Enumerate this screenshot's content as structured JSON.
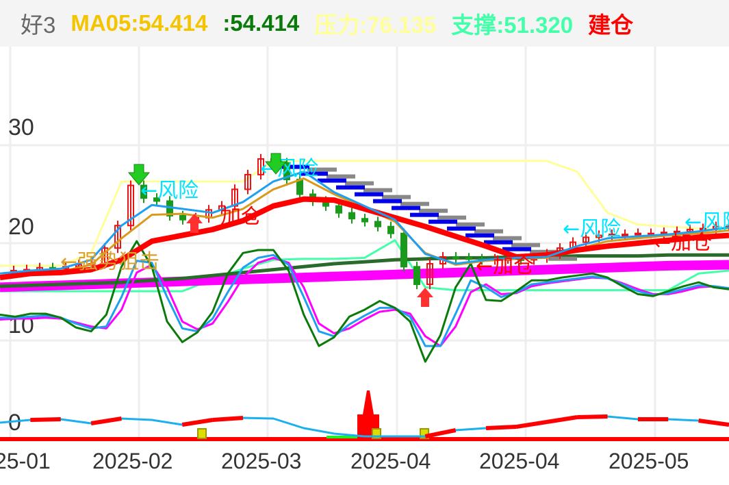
{
  "header": {
    "name": "好3",
    "ma05": "MA05:54.414",
    "value": ":54.414",
    "pressure": "压力:76.135",
    "support": "支撑:51.320",
    "build": "建仓"
  },
  "colors": {
    "ma05": "#f5c400",
    "value": "#0a7a0a",
    "pressure": "#ffff99",
    "support": "#44ffaa",
    "build": "#ff0000",
    "up": "#ee1111",
    "down": "#1a9a1a",
    "ma_long": "#ff0000",
    "ma_fast": "#1e9ff0",
    "ma_mid": "#d99a1a",
    "trend_green": "#2a6a2a",
    "trend_magenta": "#ff00ff",
    "osc_green": "#0a7a0a",
    "osc_blue": "#1e9ff0",
    "osc_magenta": "#ff00ff",
    "bottom_line": "#1ab0ee"
  },
  "chart_data": {
    "type": "candlestick",
    "y_ticks": [
      "30",
      "20",
      "10",
      "0"
    ],
    "x_ticks": [
      "25-01",
      "2025-02",
      "2025-03",
      "2025-04",
      "2025-04",
      "2025-05"
    ],
    "grid": true,
    "closes": [
      17.2,
      17.3,
      17.5,
      17.4,
      17.6,
      17.8,
      17.9,
      19.5,
      21.8,
      25.9,
      24.6,
      24.3,
      22.8,
      22.4,
      22.6,
      23.4,
      23.8,
      25.5,
      27.0,
      28.6,
      28.2,
      26.5,
      25.0,
      24.3,
      23.8,
      23.1,
      22.5,
      22.2,
      21.7,
      21.0,
      17.6,
      15.8,
      17.9,
      18.6,
      18.5,
      18.4,
      18.3,
      18.4,
      18.4,
      18.3,
      18.5,
      18.9,
      19.5,
      20.1,
      20.6,
      20.8,
      20.9,
      20.9,
      21.0,
      21.0,
      21.1,
      21.2,
      21.4,
      21.5,
      21.7,
      21.7
    ],
    "lines": {
      "ma_long": [
        16.5,
        16.9,
        17.0,
        17.3,
        18.3,
        20.2,
        20.8,
        21.4,
        22.3,
        23.8,
        24.5,
        24.4,
        23.5,
        22.6,
        21.7,
        20.7,
        19.7,
        18.6,
        18.8,
        19.3,
        19.7,
        20.0,
        20.3,
        20.6,
        20.8
      ],
      "ma_fast": [
        16.9,
        17.2,
        17.4,
        18.3,
        21.8,
        23.9,
        23.5,
        23.1,
        24.2,
        26.3,
        27.3,
        25.2,
        23.8,
        22.4,
        18.9,
        17.9,
        18.3,
        18.5,
        18.6,
        19.7,
        20.5,
        20.7,
        20.9,
        21.2,
        21.6
      ],
      "ma_mid": [
        16.6,
        16.9,
        17.1,
        17.8,
        20.5,
        22.9,
        23.0,
        22.6,
        23.5,
        25.5,
        26.6,
        25.0,
        23.6,
        22.2,
        19.0,
        17.8,
        18.2,
        18.4,
        18.5,
        19.4,
        20.2,
        20.5,
        20.8,
        21.0,
        21.3
      ],
      "pressure": [
        17.7,
        17.7,
        17.7,
        19.0,
        26.3,
        26.3,
        26.3,
        26.3,
        26.3,
        28.4,
        28.4,
        28.4,
        28.4,
        28.4,
        28.4,
        28.4,
        28.4,
        28.4,
        28.4,
        27.3,
        23.1,
        21.9,
        21.7,
        21.5,
        21.4
      ],
      "support": [
        15.1,
        15.1,
        15.1,
        15.1,
        15.1,
        15.1,
        15.1,
        16.3,
        17.4,
        18.3,
        18.4,
        18.4,
        18.5,
        20.3,
        15.5,
        15.2,
        15.2,
        15.2,
        15.2,
        15.2,
        15.2,
        15.2,
        15.2,
        16.9,
        17.2
      ],
      "trend_green": [
        15.6,
        15.7,
        15.8,
        15.9,
        16.0,
        16.2,
        16.4,
        16.7,
        17.0,
        17.3,
        17.6,
        17.9,
        18.1,
        18.3,
        18.4,
        18.5,
        18.5,
        18.6,
        18.6,
        18.7,
        18.7,
        18.7,
        18.8,
        18.8,
        18.8
      ],
      "trend_magenta": [
        15.5,
        15.6,
        15.7,
        15.8,
        15.9,
        16.0,
        16.1,
        16.2,
        16.3,
        16.4,
        16.5,
        16.6,
        16.7,
        16.8,
        16.9,
        17.0,
        17.1,
        17.2,
        17.3,
        17.4,
        17.5,
        17.6,
        17.7,
        17.75,
        17.8
      ]
    },
    "oscillator": {
      "green": [
        12.7,
        12.5,
        12.8,
        12.8,
        12.4,
        11.4,
        11.0,
        12.7,
        17.6,
        20.2,
        17.6,
        12.0,
        9.9,
        10.9,
        13.0,
        16.9,
        19.0,
        19.3,
        19.3,
        17.2,
        12.7,
        9.5,
        10.4,
        12.5,
        13.2,
        14.1,
        13.4,
        12.0,
        7.9,
        10.6,
        15.5,
        17.9,
        14.2,
        14.1,
        15.1,
        16.2,
        16.2,
        16.5,
        16.7,
        16.9,
        16.5,
        15.6,
        14.8,
        14.6,
        15.1,
        15.6,
        16.0,
        15.5,
        15.3
      ],
      "blue": [
        12.4,
        12.4,
        12.5,
        12.6,
        12.4,
        11.8,
        11.3,
        11.5,
        14.5,
        18.2,
        18.0,
        14.5,
        11.3,
        11.0,
        12.3,
        15.0,
        17.5,
        18.5,
        18.8,
        17.8,
        14.5,
        11.0,
        10.5,
        11.7,
        12.6,
        13.4,
        13.4,
        12.5,
        9.5,
        9.5,
        12.8,
        16.2,
        15.5,
        14.5,
        15.0,
        15.8,
        16.0,
        16.2,
        16.4,
        16.6,
        16.4,
        15.8,
        15.1,
        14.7,
        14.9,
        15.3,
        15.7,
        15.6,
        15.4
      ],
      "magenta": [
        12.2,
        12.3,
        12.3,
        12.4,
        12.3,
        11.9,
        11.5,
        11.3,
        13.2,
        17.0,
        17.8,
        15.5,
        12.0,
        11.2,
        11.8,
        14.0,
        16.5,
        18.0,
        18.5,
        18.0,
        15.5,
        11.8,
        10.8,
        11.3,
        12.2,
        13.0,
        13.2,
        12.8,
        10.5,
        9.5,
        11.5,
        15.0,
        15.8,
        14.8,
        14.9,
        15.6,
        15.9,
        16.1,
        16.3,
        16.5,
        16.4,
        15.9,
        15.3,
        14.8,
        14.8,
        15.1,
        15.5,
        15.6,
        15.4
      ]
    },
    "bottom_indicator": {
      "line": [
        2.3,
        2.7,
        2.8,
        2.2,
        2.9,
        2.7,
        2.0,
        2.7,
        3.0,
        2.9,
        1.5,
        0.7,
        0.3,
        0.3,
        0.3,
        1.2,
        1.5,
        1.7,
        2.4,
        3.1,
        3.2,
        2.8,
        2.8,
        2.6,
        2.0
      ],
      "red_segments": [
        0,
        1,
        0,
        1,
        0,
        0,
        1,
        1,
        0,
        0,
        0,
        0,
        0,
        0,
        1,
        0,
        1,
        1,
        1,
        1,
        0,
        1,
        0,
        1
      ]
    },
    "annotations": [
      {
        "text": "←风险",
        "color": "#00e5ff"
      },
      {
        "text": "←风险",
        "color": "#00e5ff"
      },
      {
        "text": "←风险",
        "color": "#00e5ff"
      },
      {
        "text": "←风险",
        "color": "#00e5ff"
      },
      {
        "text": "加仓",
        "color": "#ff0000"
      },
      {
        "text": "←加仓",
        "color": "#ff0000"
      },
      {
        "text": "←加仓",
        "color": "#ff0000"
      },
      {
        "text": "←强势狙击",
        "color": "#d9a030"
      }
    ]
  }
}
